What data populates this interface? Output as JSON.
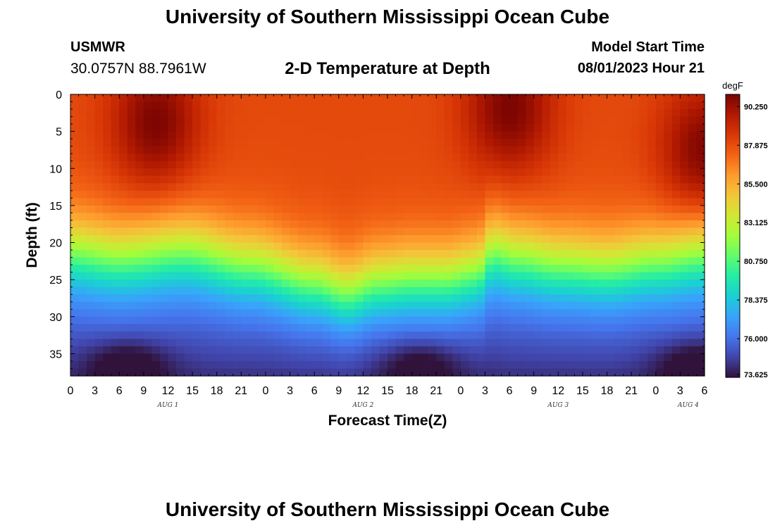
{
  "header": {
    "title": "University of Southern Mississippi Ocean Cube",
    "station_id": "USMWR",
    "coordinates": "30.0757N  88.7961W",
    "plot_title": "2-D Temperature at Depth",
    "model_start_label": "Model Start Time",
    "model_start_value": "08/01/2023 Hour 21"
  },
  "footer": {
    "title": "University of Southern Mississippi Ocean Cube"
  },
  "colors": {
    "palette": [
      "#30123b",
      "#4145ab",
      "#4675ed",
      "#39a2fc",
      "#1bcfd4",
      "#24eca6",
      "#61fc6c",
      "#a4fc3b",
      "#d1e834",
      "#f3c63a",
      "#fe9b2d",
      "#f36315",
      "#d93806",
      "#b11901",
      "#7a0402"
    ]
  },
  "chart_data": {
    "type": "heatmap",
    "title": "2-D Temperature at Depth",
    "xlabel": "Forecast Time(Z)",
    "ylabel": "Depth (ft)",
    "x_tick_labels": [
      "0",
      "3",
      "6",
      "9",
      "12",
      "15",
      "18",
      "21",
      "0",
      "3",
      "6",
      "9",
      "12",
      "15",
      "18",
      "21",
      "0",
      "3",
      "6",
      "9",
      "12",
      "15",
      "18",
      "21",
      "0",
      "3",
      "6"
    ],
    "x_range_hours": [
      0,
      78
    ],
    "date_labels": [
      {
        "label": "AUG 1",
        "hour": 12
      },
      {
        "label": "AUG 2",
        "hour": 36
      },
      {
        "label": "AUG 3",
        "hour": 60
      },
      {
        "label": "AUG 4",
        "hour": 76
      }
    ],
    "y_ticks": [
      0,
      5,
      10,
      15,
      20,
      25,
      30,
      35
    ],
    "y_tick_labels": [
      "0",
      "5",
      "10",
      "15",
      "20",
      "25",
      "30",
      "35"
    ],
    "ylim": [
      0,
      38
    ],
    "colorbar": {
      "unit": "degF",
      "min": 73.625,
      "max": 91.0,
      "tick_values": [
        90.25,
        87.875,
        85.5,
        83.125,
        80.75,
        78.375,
        76.0,
        73.625
      ],
      "tick_labels": [
        "90.250",
        "87.875",
        "85.500",
        "83.125",
        "80.750",
        "78.375",
        "76.000",
        "73.625"
      ]
    },
    "grid_resolution": {
      "hours_per_cell": 1,
      "depth_ft_per_cell": 1
    },
    "thermocline_depth_ft": [
      {
        "hour": 0,
        "depth": 20.5
      },
      {
        "hour": 6,
        "depth": 21.5
      },
      {
        "hour": 14,
        "depth": 20.5
      },
      {
        "hour": 22,
        "depth": 22.5
      },
      {
        "hour": 30,
        "depth": 25.0
      },
      {
        "hour": 34,
        "depth": 26.5
      },
      {
        "hour": 38,
        "depth": 25.0
      },
      {
        "hour": 42,
        "depth": 24.5
      },
      {
        "hour": 46,
        "depth": 24.5
      },
      {
        "hour": 50,
        "depth": 23.5
      },
      {
        "hour": 52,
        "depth": 20.5
      },
      {
        "hour": 55,
        "depth": 21.5
      },
      {
        "hour": 60,
        "depth": 22.5
      },
      {
        "hour": 66,
        "depth": 23.0
      },
      {
        "hour": 72,
        "depth": 22.0
      },
      {
        "hour": 78,
        "depth": 21.0
      }
    ],
    "surface_warm_cores": [
      {
        "hour": 10.5,
        "depth": 4,
        "temp": 91.0
      },
      {
        "hour": 54,
        "depth": 2,
        "temp": 91.0
      },
      {
        "hour": 78,
        "depth": 8,
        "temp": 91.0
      }
    ],
    "bottom_cold_cores": [
      {
        "hour": 7,
        "depth": 36.5,
        "temp": 73.6
      },
      {
        "hour": 43,
        "depth": 36.5,
        "temp": 73.7
      },
      {
        "hour": 77,
        "depth": 36.5,
        "temp": 73.6
      }
    ]
  }
}
